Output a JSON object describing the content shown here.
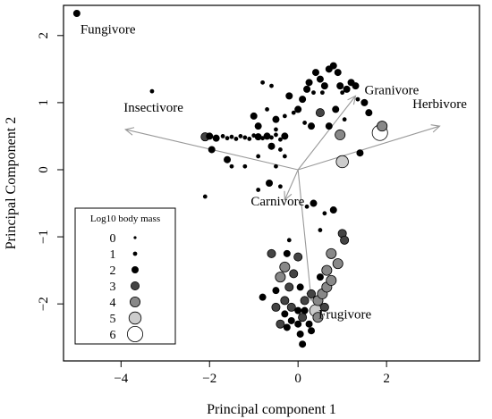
{
  "chart_data": {
    "type": "scatter",
    "title": "",
    "xlabel": "Principal component 1",
    "ylabel": "Principal Component 2",
    "xlim": [
      -5.3,
      4.1
    ],
    "ylim": [
      -2.85,
      2.45
    ],
    "xticks": [
      "−4",
      "−2",
      "0",
      "2"
    ],
    "xtick_values": [
      -4,
      -2,
      0,
      2
    ],
    "yticks": [
      "−2",
      "−1",
      "0",
      "1",
      "2"
    ],
    "ytick_values": [
      -2,
      -1,
      0,
      1,
      2
    ],
    "grid": false,
    "legend": {
      "title": "Log10 body mass",
      "placement": "bottom-left",
      "entries": [
        {
          "label": "0",
          "mass": 0,
          "fill": "#000000"
        },
        {
          "label": "1",
          "mass": 1,
          "fill": "#000000"
        },
        {
          "label": "2",
          "mass": 2,
          "fill": "#000000"
        },
        {
          "label": "3",
          "mass": 3,
          "fill": "#444444"
        },
        {
          "label": "4",
          "mass": 4,
          "fill": "#888888"
        },
        {
          "label": "5",
          "mass": 5,
          "fill": "#cccccc"
        },
        {
          "label": "6",
          "mass": 6,
          "fill": "#ffffff"
        }
      ]
    },
    "loadings": [
      {
        "label": "Fungivore",
        "x": -5.0,
        "y": 2.35
      },
      {
        "label": "Insectivore",
        "x": -3.9,
        "y": 0.6
      },
      {
        "label": "Herbivore",
        "x": 3.2,
        "y": 0.65
      },
      {
        "label": "Granivore",
        "x": 1.3,
        "y": 1.1
      },
      {
        "label": "Carnivore",
        "x": -0.3,
        "y": -0.45
      },
      {
        "label": "Frugivore",
        "x": 0.3,
        "y": -1.95
      }
    ],
    "points": [
      {
        "x": -5.0,
        "y": 2.33,
        "mass": 2
      },
      {
        "x": -3.3,
        "y": 1.17,
        "mass": 1
      },
      {
        "x": -2.1,
        "y": 0.49,
        "mass": 3
      },
      {
        "x": -2.0,
        "y": 0.5,
        "mass": 2
      },
      {
        "x": -1.95,
        "y": 0.3,
        "mass": 2
      },
      {
        "x": -1.85,
        "y": 0.47,
        "mass": 2
      },
      {
        "x": -1.7,
        "y": 0.5,
        "mass": 1
      },
      {
        "x": -1.6,
        "y": 0.47,
        "mass": 1
      },
      {
        "x": -1.5,
        "y": 0.49,
        "mass": 1
      },
      {
        "x": -1.4,
        "y": 0.46,
        "mass": 1
      },
      {
        "x": -1.3,
        "y": 0.5,
        "mass": 1
      },
      {
        "x": -1.2,
        "y": 0.48,
        "mass": 1
      },
      {
        "x": -1.1,
        "y": 0.46,
        "mass": 1
      },
      {
        "x": -1.0,
        "y": 0.51,
        "mass": 1
      },
      {
        "x": -0.9,
        "y": 0.49,
        "mass": 2
      },
      {
        "x": -0.8,
        "y": 0.47,
        "mass": 1
      },
      {
        "x": -0.7,
        "y": 0.5,
        "mass": 2
      },
      {
        "x": -0.6,
        "y": 0.48,
        "mass": 1
      },
      {
        "x": -0.5,
        "y": 0.52,
        "mass": 1
      },
      {
        "x": -0.4,
        "y": 0.45,
        "mass": 1
      },
      {
        "x": -0.3,
        "y": 0.5,
        "mass": 2
      },
      {
        "x": -1.6,
        "y": 0.15,
        "mass": 2
      },
      {
        "x": -1.5,
        "y": 0.05,
        "mass": 1
      },
      {
        "x": -1.2,
        "y": 0.05,
        "mass": 1
      },
      {
        "x": -0.9,
        "y": 0.2,
        "mass": 1
      },
      {
        "x": -0.6,
        "y": 0.35,
        "mass": 2
      },
      {
        "x": -0.4,
        "y": 0.3,
        "mass": 1
      },
      {
        "x": -0.3,
        "y": 0.2,
        "mass": 1
      },
      {
        "x": -0.5,
        "y": 0.05,
        "mass": 1
      },
      {
        "x": -1.0,
        "y": 0.8,
        "mass": 2
      },
      {
        "x": -0.9,
        "y": 0.65,
        "mass": 2
      },
      {
        "x": -0.7,
        "y": 0.9,
        "mass": 1
      },
      {
        "x": -0.5,
        "y": 0.75,
        "mass": 2
      },
      {
        "x": -0.6,
        "y": 1.25,
        "mass": 1
      },
      {
        "x": -0.3,
        "y": 0.8,
        "mass": 1
      },
      {
        "x": -0.2,
        "y": 1.1,
        "mass": 2
      },
      {
        "x": -0.1,
        "y": 0.85,
        "mass": 1
      },
      {
        "x": 0.0,
        "y": 0.9,
        "mass": 2
      },
      {
        "x": 0.1,
        "y": 1.05,
        "mass": 2
      },
      {
        "x": 0.2,
        "y": 1.2,
        "mass": 2
      },
      {
        "x": 0.25,
        "y": 1.3,
        "mass": 2
      },
      {
        "x": 0.35,
        "y": 1.15,
        "mass": 1
      },
      {
        "x": 0.4,
        "y": 1.45,
        "mass": 2
      },
      {
        "x": 0.5,
        "y": 1.35,
        "mass": 2
      },
      {
        "x": 0.55,
        "y": 1.15,
        "mass": 1
      },
      {
        "x": 0.6,
        "y": 1.25,
        "mass": 2
      },
      {
        "x": 0.7,
        "y": 1.5,
        "mass": 2
      },
      {
        "x": 0.8,
        "y": 1.55,
        "mass": 2
      },
      {
        "x": 0.9,
        "y": 1.45,
        "mass": 2
      },
      {
        "x": 0.95,
        "y": 1.25,
        "mass": 2
      },
      {
        "x": 1.0,
        "y": 1.15,
        "mass": 1
      },
      {
        "x": 1.1,
        "y": 1.2,
        "mass": 2
      },
      {
        "x": 1.2,
        "y": 1.3,
        "mass": 2
      },
      {
        "x": 1.3,
        "y": 1.25,
        "mass": 2
      },
      {
        "x": 1.35,
        "y": 1.05,
        "mass": 1
      },
      {
        "x": 1.5,
        "y": 1.0,
        "mass": 2
      },
      {
        "x": 1.6,
        "y": 0.85,
        "mass": 2
      },
      {
        "x": -0.8,
        "y": 1.3,
        "mass": 1
      },
      {
        "x": 0.15,
        "y": 0.7,
        "mass": 1
      },
      {
        "x": 0.3,
        "y": 0.65,
        "mass": 2
      },
      {
        "x": 0.5,
        "y": 0.85,
        "mass": 3
      },
      {
        "x": 0.7,
        "y": 0.65,
        "mass": 2
      },
      {
        "x": 0.85,
        "y": 0.9,
        "mass": 2
      },
      {
        "x": 0.95,
        "y": 0.52,
        "mass": 4
      },
      {
        "x": 1.05,
        "y": 0.75,
        "mass": 1
      },
      {
        "x": 1.9,
        "y": 0.65,
        "mass": 4
      },
      {
        "x": 1.85,
        "y": 0.55,
        "mass": 6
      },
      {
        "x": 1.0,
        "y": 0.12,
        "mass": 5
      },
      {
        "x": 1.4,
        "y": 0.25,
        "mass": 2
      },
      {
        "x": -0.5,
        "y": 0.6,
        "mass": 1
      },
      {
        "x": -2.1,
        "y": -0.4,
        "mass": 1
      },
      {
        "x": -0.9,
        "y": -0.3,
        "mass": 1
      },
      {
        "x": -0.65,
        "y": -0.2,
        "mass": 2
      },
      {
        "x": -0.4,
        "y": -0.25,
        "mass": 1
      },
      {
        "x": 0.2,
        "y": -0.55,
        "mass": 1
      },
      {
        "x": 0.35,
        "y": -0.5,
        "mass": 2
      },
      {
        "x": 0.6,
        "y": -0.65,
        "mass": 1
      },
      {
        "x": 0.8,
        "y": -0.6,
        "mass": 2
      },
      {
        "x": 0.5,
        "y": -0.9,
        "mass": 1
      },
      {
        "x": 1.0,
        "y": -0.95,
        "mass": 3
      },
      {
        "x": 1.05,
        "y": -1.05,
        "mass": 3
      },
      {
        "x": -0.2,
        "y": -1.05,
        "mass": 1
      },
      {
        "x": -0.25,
        "y": -1.25,
        "mass": 2
      },
      {
        "x": -0.3,
        "y": -1.45,
        "mass": 4
      },
      {
        "x": -0.4,
        "y": -1.6,
        "mass": 4
      },
      {
        "x": -0.2,
        "y": -1.75,
        "mass": 3
      },
      {
        "x": -0.8,
        "y": -1.9,
        "mass": 2
      },
      {
        "x": -0.5,
        "y": -1.8,
        "mass": 2
      },
      {
        "x": -0.3,
        "y": -1.95,
        "mass": 3
      },
      {
        "x": -0.15,
        "y": -2.05,
        "mass": 3
      },
      {
        "x": 0.0,
        "y": -2.1,
        "mass": 2
      },
      {
        "x": 0.15,
        "y": -1.95,
        "mass": 3
      },
      {
        "x": 0.3,
        "y": -1.85,
        "mass": 3
      },
      {
        "x": 0.45,
        "y": -1.95,
        "mass": 4
      },
      {
        "x": 0.55,
        "y": -1.85,
        "mass": 4
      },
      {
        "x": 0.65,
        "y": -1.75,
        "mass": 4
      },
      {
        "x": 0.75,
        "y": -1.65,
        "mass": 4
      },
      {
        "x": 0.65,
        "y": -1.5,
        "mass": 4
      },
      {
        "x": 0.9,
        "y": -1.4,
        "mass": 4
      },
      {
        "x": 0.75,
        "y": -1.25,
        "mass": 4
      },
      {
        "x": 0.4,
        "y": -2.1,
        "mass": 5
      },
      {
        "x": 0.45,
        "y": -2.2,
        "mass": 4
      },
      {
        "x": -0.15,
        "y": -2.25,
        "mass": 2
      },
      {
        "x": 0.0,
        "y": -2.3,
        "mass": 2
      },
      {
        "x": 0.1,
        "y": -2.2,
        "mass": 3
      },
      {
        "x": 0.25,
        "y": -2.3,
        "mass": 2
      },
      {
        "x": -0.3,
        "y": -2.15,
        "mass": 2
      },
      {
        "x": -0.25,
        "y": -2.35,
        "mass": 2
      },
      {
        "x": 0.05,
        "y": -2.45,
        "mass": 2
      },
      {
        "x": 0.15,
        "y": -2.1,
        "mass": 2
      },
      {
        "x": -0.4,
        "y": -2.3,
        "mass": 3
      },
      {
        "x": 0.1,
        "y": -2.6,
        "mass": 2
      },
      {
        "x": -0.5,
        "y": -2.05,
        "mass": 3
      },
      {
        "x": 0.3,
        "y": -2.4,
        "mass": 2
      },
      {
        "x": -0.6,
        "y": -1.25,
        "mass": 3
      },
      {
        "x": 0.0,
        "y": -1.3,
        "mass": 3
      },
      {
        "x": -0.1,
        "y": -1.55,
        "mass": 3
      },
      {
        "x": 0.05,
        "y": -1.75,
        "mass": 2
      },
      {
        "x": 0.6,
        "y": -2.05,
        "mass": 3
      },
      {
        "x": 0.5,
        "y": -1.6,
        "mass": 2
      }
    ]
  }
}
